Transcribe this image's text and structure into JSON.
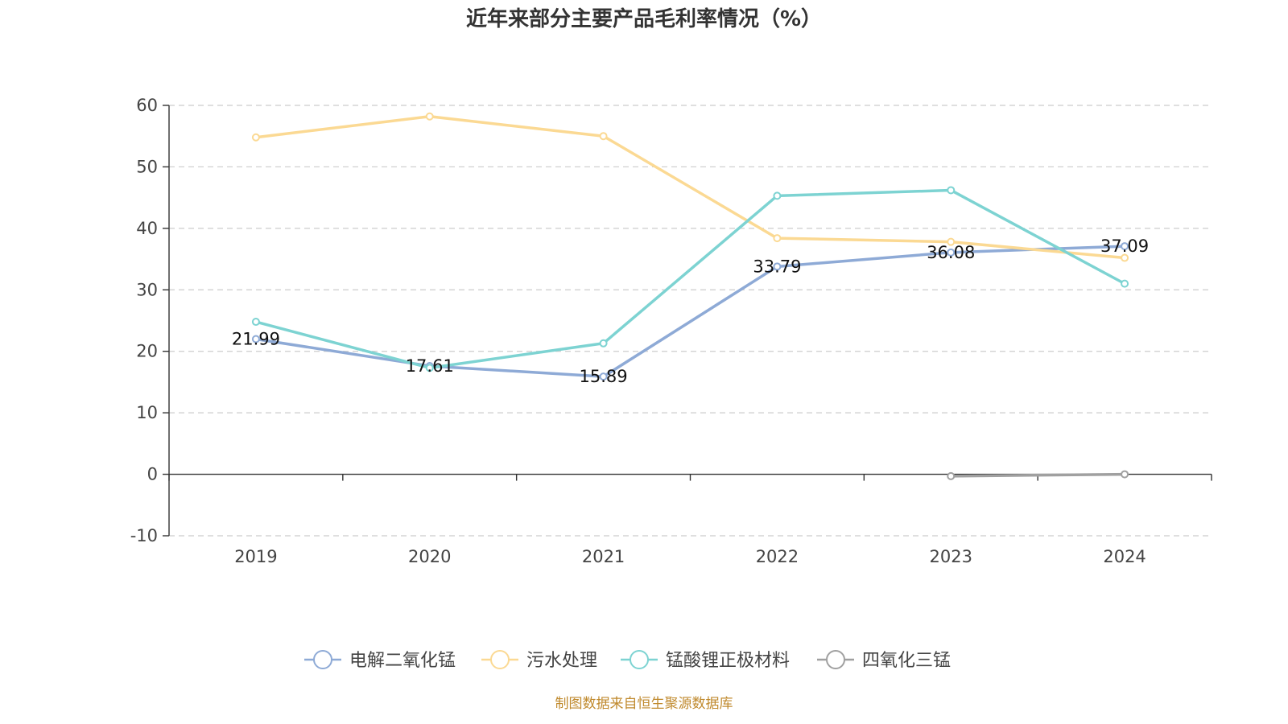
{
  "chart_data": {
    "type": "line",
    "title": "近年来部分主要产品毛利率情况（%）",
    "categories": [
      "2019",
      "2020",
      "2021",
      "2022",
      "2023",
      "2024"
    ],
    "ylim": [
      -10,
      60
    ],
    "yticks": [
      -10,
      0,
      10,
      20,
      30,
      40,
      50,
      60
    ],
    "grid": true,
    "legend_position": "bottom",
    "series": [
      {
        "name": "电解二氧化锰",
        "color": "#8eaad6",
        "values": [
          21.99,
          17.61,
          15.89,
          33.79,
          36.08,
          37.09
        ],
        "show_labels": true
      },
      {
        "name": "污水处理",
        "color": "#fbd993",
        "values": [
          54.8,
          58.2,
          55.0,
          38.4,
          37.8,
          35.2
        ],
        "show_labels": false
      },
      {
        "name": "锰酸锂正极材料",
        "color": "#7dd3d2",
        "values": [
          24.8,
          17.3,
          21.3,
          45.3,
          46.2,
          31.0
        ],
        "show_labels": false
      },
      {
        "name": "四氧化三锰",
        "color": "#a0a0a0",
        "values": [
          null,
          null,
          null,
          null,
          -0.3,
          0.0
        ],
        "show_labels": false
      }
    ]
  },
  "source_text": "制图数据来自恒生聚源数据库"
}
